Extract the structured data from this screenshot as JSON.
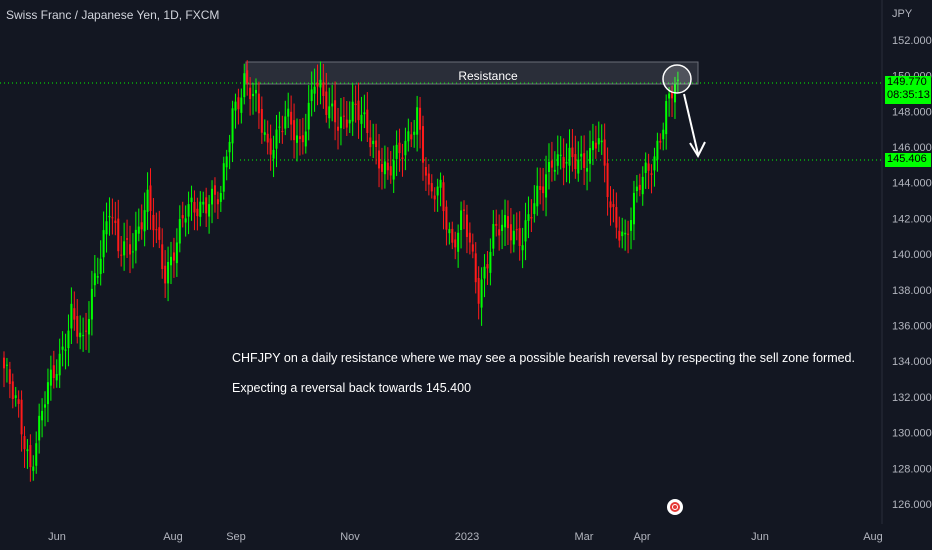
{
  "header": {
    "title": "Swiss Franc / Japanese Yen, 1D, FXCM",
    "currency": "JPY"
  },
  "annotations": {
    "resistance_label": "Resistance",
    "text_1": "CHFJPY on a daily resistance where we may see a possible bearish reversal by respecting the sell zone formed.",
    "text_2": "Expecting a reversal back towards 145.400"
  },
  "price_tags": {
    "last_price": "149.770",
    "countdown": "08:35:13",
    "support_price": "145.406"
  },
  "colors": {
    "background": "#131722",
    "up": "#00ff00",
    "down": "#ff1a1a",
    "level_line": "#00ff00",
    "resistance_box": "#2a2e39"
  },
  "chart_data": {
    "type": "candlestick",
    "symbol": "CHFJPY",
    "interval": "1D",
    "y_axis": {
      "ticks": [
        126.0,
        128.0,
        130.0,
        132.0,
        134.0,
        136.0,
        138.0,
        140.0,
        142.0,
        144.0,
        146.0,
        148.0,
        150.0,
        152.0
      ],
      "tick_labels": [
        "126.000",
        "128.000",
        "130.000",
        "132.000",
        "134.000",
        "136.000",
        "138.000",
        "140.000",
        "142.000",
        "144.000",
        "146.000",
        "148.000",
        "150.000",
        "152.000"
      ],
      "range": [
        125.0,
        154.4
      ]
    },
    "x_axis": {
      "ticks": [
        "Jun",
        "Aug",
        "Sep",
        "Nov",
        "2023",
        "Mar",
        "Apr",
        "Jun",
        "Aug"
      ]
    },
    "levels": {
      "resistance_zone": [
        149.6,
        150.8
      ],
      "last_price": 149.77,
      "support": 145.406
    },
    "close_path": [
      {
        "bar": 0,
        "close": 133.6
      },
      {
        "bar": 5,
        "close": 131.0
      },
      {
        "bar": 9,
        "close": 128.2
      },
      {
        "bar": 14,
        "close": 131.8
      },
      {
        "bar": 19,
        "close": 134.2
      },
      {
        "bar": 23,
        "close": 136.8
      },
      {
        "bar": 27,
        "close": 134.6
      },
      {
        "bar": 31,
        "close": 138.8
      },
      {
        "bar": 36,
        "close": 142.6
      },
      {
        "bar": 39,
        "close": 140.0
      },
      {
        "bar": 44,
        "close": 140.8
      },
      {
        "bar": 49,
        "close": 142.8
      },
      {
        "bar": 55,
        "close": 139.0
      },
      {
        "bar": 62,
        "close": 142.2
      },
      {
        "bar": 70,
        "close": 143.2
      },
      {
        "bar": 74,
        "close": 143.0
      },
      {
        "bar": 78,
        "close": 148.0
      },
      {
        "bar": 82,
        "close": 149.8
      },
      {
        "bar": 86,
        "close": 148.3
      },
      {
        "bar": 90,
        "close": 146.0
      },
      {
        "bar": 96,
        "close": 147.6
      },
      {
        "bar": 101,
        "close": 146.0
      },
      {
        "bar": 106,
        "close": 150.0
      },
      {
        "bar": 110,
        "close": 148.0
      },
      {
        "bar": 114,
        "close": 147.6
      },
      {
        "bar": 120,
        "close": 148.0
      },
      {
        "bar": 126,
        "close": 146.3
      },
      {
        "bar": 131,
        "close": 144.4
      },
      {
        "bar": 136,
        "close": 145.8
      },
      {
        "bar": 141,
        "close": 148.0
      },
      {
        "bar": 145,
        "close": 143.0
      },
      {
        "bar": 149,
        "close": 143.8
      },
      {
        "bar": 153,
        "close": 140.5
      },
      {
        "bar": 157,
        "close": 142.0
      },
      {
        "bar": 162,
        "close": 138.0
      },
      {
        "bar": 167,
        "close": 141.0
      },
      {
        "bar": 172,
        "close": 141.6
      },
      {
        "bar": 177,
        "close": 141.0
      },
      {
        "bar": 182,
        "close": 143.0
      },
      {
        "bar": 187,
        "close": 145.5
      },
      {
        "bar": 192,
        "close": 145.0
      },
      {
        "bar": 198,
        "close": 145.4
      },
      {
        "bar": 203,
        "close": 146.5
      },
      {
        "bar": 207,
        "close": 142.5
      },
      {
        "bar": 212,
        "close": 141.0
      },
      {
        "bar": 217,
        "close": 143.8
      },
      {
        "bar": 222,
        "close": 145.6
      },
      {
        "bar": 226,
        "close": 148.0
      },
      {
        "bar": 230,
        "close": 149.77
      }
    ]
  }
}
